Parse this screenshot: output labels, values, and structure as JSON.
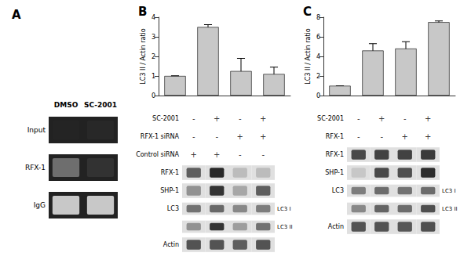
{
  "chart_data": [
    {
      "type": "gel",
      "title": "A",
      "columns": [
        "DMSO",
        "SC-2001"
      ],
      "rows": [
        {
          "name": "Input",
          "values": [
            0.92,
            0.9
          ]
        },
        {
          "name": "RFX-1",
          "values": [
            0.55,
            0.85
          ]
        },
        {
          "name": "IgG",
          "values": [
            0.1,
            0.1
          ]
        }
      ]
    },
    {
      "type": "bar",
      "title": "B",
      "categories": [
        null,
        null,
        null,
        null
      ],
      "values": [
        1.0,
        3.5,
        1.25,
        1.1
      ],
      "errors": [
        0.0,
        0.12,
        0.65,
        0.35
      ],
      "color": "#c8c8c8",
      "ylabel": "LC3 II / Actin ratio",
      "ylim": [
        0,
        4
      ],
      "yticks": [
        0,
        1,
        2,
        3,
        4
      ],
      "grid": false,
      "tick_labels": "y",
      "conditions": [
        {
          "name": "SC-2001",
          "values": [
            "-",
            "+",
            "-",
            "+"
          ]
        },
        {
          "name": "RFX-1 siRNA",
          "values": [
            "-",
            "-",
            "+",
            "+"
          ]
        },
        {
          "name": "Control siRNA",
          "values": [
            "+",
            "+",
            "-",
            "-"
          ]
        }
      ],
      "gel": [
        {
          "name": "RFX-1",
          "values": [
            0.65,
            0.9,
            0.2,
            0.2
          ]
        },
        {
          "name": "SHP-1",
          "values": [
            0.4,
            0.85,
            0.3,
            0.65
          ]
        },
        {
          "name": "LC3",
          "bands": [
            {
              "name": "LC3 I",
              "values": [
                0.55,
                0.6,
                0.45,
                0.5
              ]
            },
            {
              "name": "LC3 II",
              "values": [
                0.4,
                0.85,
                0.35,
                0.55
              ]
            }
          ]
        },
        {
          "name": "Actin",
          "values": [
            0.7,
            0.7,
            0.65,
            0.7
          ]
        }
      ]
    },
    {
      "type": "bar",
      "title": "C",
      "categories": [
        null,
        null,
        null,
        null
      ],
      "values": [
        1.0,
        4.6,
        4.8,
        7.5
      ],
      "errors": [
        0.0,
        0.7,
        0.7,
        0.12
      ],
      "color": "#c8c8c8",
      "ylabel": "LC3 II / Actin ratio",
      "ylim": [
        0,
        8
      ],
      "yticks": [
        0,
        2,
        4,
        6,
        8
      ],
      "grid": false,
      "tick_labels": "y",
      "conditions": [
        {
          "name": "SC-2001",
          "values": [
            "-",
            "+",
            "-",
            "+"
          ]
        },
        {
          "name": "RFX-1",
          "values": [
            "-",
            "-",
            "+",
            "+"
          ]
        }
      ],
      "gel": [
        {
          "name": "RFX-1",
          "values": [
            0.75,
            0.78,
            0.78,
            0.82
          ]
        },
        {
          "name": "SHP-1",
          "values": [
            0.15,
            0.75,
            0.72,
            0.88
          ]
        },
        {
          "name": "LC3",
          "bands": [
            {
              "name": "LC3 I",
              "values": [
                0.5,
                0.58,
                0.55,
                0.58
              ]
            },
            {
              "name": "LC3 II",
              "values": [
                0.45,
                0.62,
                0.58,
                0.72
              ]
            }
          ]
        },
        {
          "name": "Actin",
          "values": [
            0.7,
            0.7,
            0.68,
            0.72
          ]
        }
      ]
    }
  ]
}
